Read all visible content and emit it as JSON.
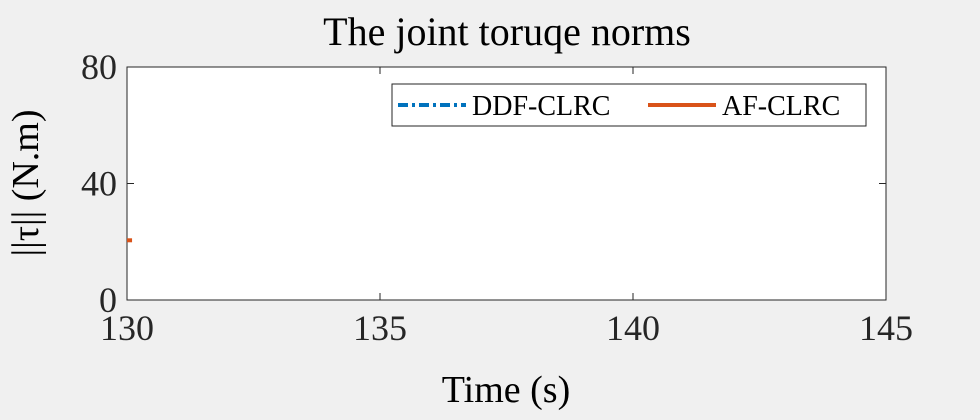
{
  "chart_data": {
    "type": "line",
    "title": "The joint toruqe norms",
    "xlabel": "Time (s)",
    "ylabel": "||τ|| (N.m)",
    "xlim": [
      130,
      145
    ],
    "ylim": [
      0,
      80
    ],
    "xticks": [
      130,
      135,
      140,
      145
    ],
    "yticks": [
      0,
      40,
      80
    ],
    "grid": false,
    "legend_position": "top-right",
    "series": [
      {
        "name": "DDF-CLRC",
        "color": "#0072BD",
        "style": "dash-dot",
        "x": [],
        "y": []
      },
      {
        "name": "AF-CLRC",
        "color": "#D95319",
        "style": "solid",
        "x": [
          130,
          130.1
        ],
        "y": [
          20.5,
          20.5
        ]
      }
    ]
  }
}
